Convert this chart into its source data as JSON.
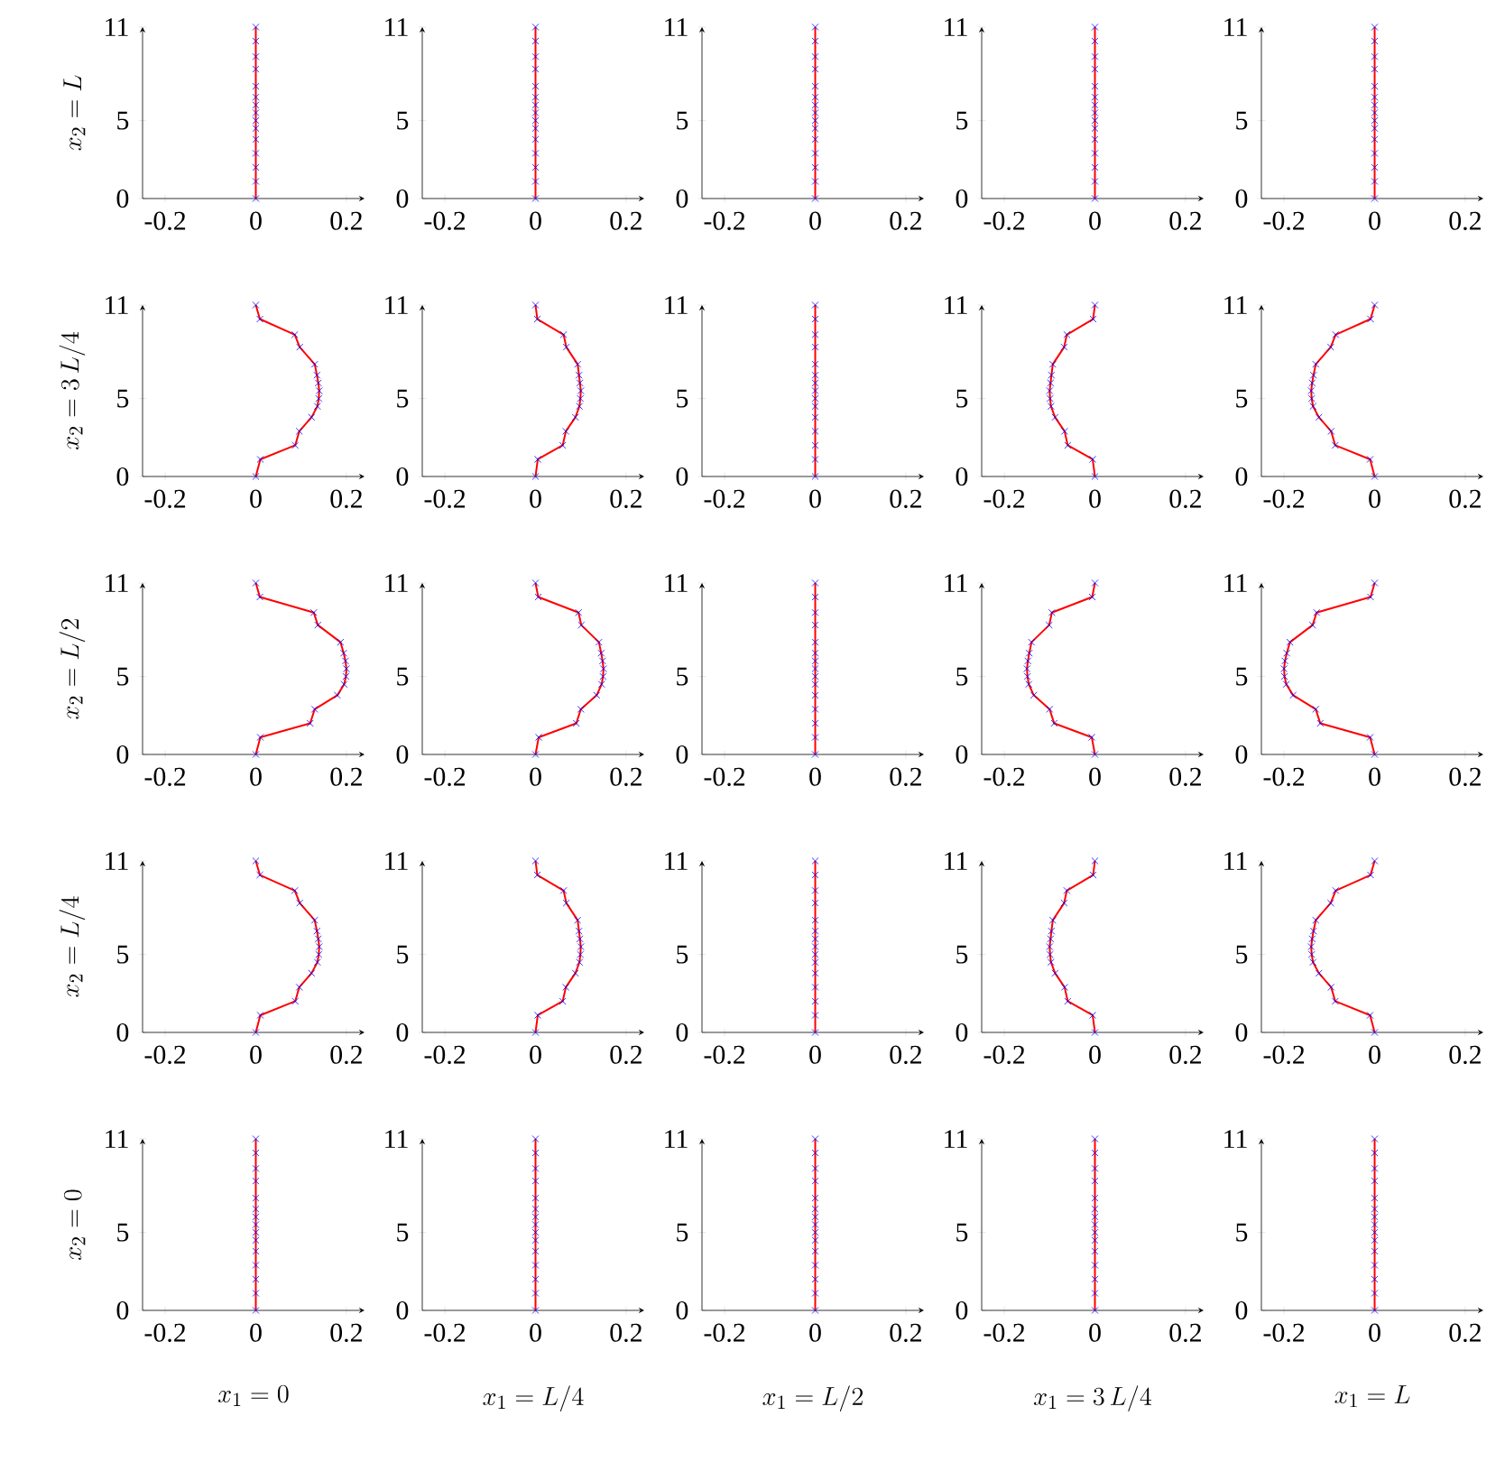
{
  "chart_data": [
    {
      "type": "line",
      "ylabel": "x_2 = L",
      "x": [
        0,
        0,
        0,
        0,
        0,
        0,
        0,
        0,
        0,
        0,
        0,
        0,
        0,
        0,
        0
      ],
      "xlim": [
        -0.25,
        0.24
      ],
      "ylim": [
        0,
        11
      ],
      "xticks": [
        -0.2,
        0,
        0.2
      ],
      "yticks": [
        0,
        5,
        11
      ],
      "series": [
        {
          "color": "#ff0000",
          "marker": "none",
          "values": [
            0,
            1.1,
            2,
            2.9,
            3.8,
            4.5,
            5,
            5.5,
            6,
            6.5,
            7.2,
            8.3,
            9.1,
            10.1,
            11
          ]
        },
        {
          "type": "scatter",
          "color": "#0000ff",
          "marker": "cross",
          "values": [
            0,
            1.1,
            2,
            2.9,
            3.8,
            4.5,
            5,
            5.5,
            6,
            6.5,
            7.2,
            8.3,
            9.1,
            10.1,
            11
          ]
        }
      ]
    },
    {
      "type": "line",
      "x": [
        0,
        0,
        0,
        0,
        0,
        0,
        0,
        0,
        0,
        0,
        0,
        0,
        0,
        0,
        0
      ],
      "xlim": [
        -0.25,
        0.24
      ],
      "ylim": [
        0,
        11
      ],
      "xticks": [
        -0.2,
        0,
        0.2
      ],
      "yticks": [
        0,
        5,
        11
      ],
      "series": [
        {
          "color": "#ff0000",
          "marker": "none",
          "values": [
            0,
            1.1,
            2,
            2.9,
            3.8,
            4.5,
            5,
            5.5,
            6,
            6.5,
            7.2,
            8.3,
            9.1,
            10.1,
            11
          ]
        },
        {
          "type": "scatter",
          "color": "#0000ff",
          "marker": "cross",
          "values": [
            0,
            1.1,
            2,
            2.9,
            3.8,
            4.5,
            5,
            5.5,
            6,
            6.5,
            7.2,
            8.3,
            9.1,
            10.1,
            11
          ]
        }
      ]
    },
    {
      "type": "line",
      "x": [
        0,
        0,
        0,
        0,
        0,
        0,
        0,
        0,
        0,
        0,
        0,
        0,
        0,
        0,
        0
      ],
      "xlim": [
        -0.25,
        0.24
      ],
      "ylim": [
        0,
        11
      ],
      "xticks": [
        -0.2,
        0,
        0.2
      ],
      "yticks": [
        0,
        5,
        11
      ],
      "series": [
        {
          "color": "#ff0000",
          "marker": "none",
          "values": [
            0,
            1.1,
            2,
            2.9,
            3.8,
            4.5,
            5,
            5.5,
            6,
            6.5,
            7.2,
            8.3,
            9.1,
            10.1,
            11
          ]
        },
        {
          "type": "scatter",
          "color": "#0000ff",
          "marker": "cross",
          "values": [
            0,
            1.1,
            2,
            2.9,
            3.8,
            4.5,
            5,
            5.5,
            6,
            6.5,
            7.2,
            8.3,
            9.1,
            10.1,
            11
          ]
        }
      ]
    },
    {
      "type": "line",
      "x": [
        0,
        0,
        0,
        0,
        0,
        0,
        0,
        0,
        0,
        0,
        0,
        0,
        0,
        0,
        0
      ],
      "xlim": [
        -0.25,
        0.24
      ],
      "ylim": [
        0,
        11
      ],
      "xticks": [
        -0.2,
        0,
        0.2
      ],
      "yticks": [
        0,
        5,
        11
      ],
      "series": [
        {
          "color": "#ff0000",
          "marker": "none",
          "values": [
            0,
            1.1,
            2,
            2.9,
            3.8,
            4.5,
            5,
            5.5,
            6,
            6.5,
            7.2,
            8.3,
            9.1,
            10.1,
            11
          ]
        },
        {
          "type": "scatter",
          "color": "#0000ff",
          "marker": "cross",
          "values": [
            0,
            1.1,
            2,
            2.9,
            3.8,
            4.5,
            5,
            5.5,
            6,
            6.5,
            7.2,
            8.3,
            9.1,
            10.1,
            11
          ]
        }
      ]
    },
    {
      "type": "line",
      "x": [
        0,
        0,
        0,
        0,
        0,
        0,
        0,
        0,
        0,
        0,
        0,
        0,
        0,
        0,
        0
      ],
      "xlim": [
        -0.25,
        0.24
      ],
      "ylim": [
        0,
        11
      ],
      "xticks": [
        -0.2,
        0,
        0.2
      ],
      "yticks": [
        0,
        5,
        11
      ],
      "series": [
        {
          "color": "#ff0000",
          "marker": "none",
          "values": [
            0,
            1.1,
            2,
            2.9,
            3.8,
            4.5,
            5,
            5.5,
            6,
            6.5,
            7.2,
            8.3,
            9.1,
            10.1,
            11
          ]
        },
        {
          "type": "scatter",
          "color": "#0000ff",
          "marker": "cross",
          "values": [
            0,
            1.1,
            2,
            2.9,
            3.8,
            4.5,
            5,
            5.5,
            6,
            6.5,
            7.2,
            8.3,
            9.1,
            10.1,
            11
          ]
        }
      ]
    },
    {
      "type": "line",
      "ylabel": "x_2 = 3\\,L/4",
      "x": [
        0,
        0.01,
        0.087,
        0.096,
        0.123,
        0.136,
        0.139,
        0.14,
        0.138,
        0.135,
        0.13,
        0.097,
        0.086,
        0.009,
        0
      ],
      "xlim": [
        -0.25,
        0.24
      ],
      "ylim": [
        0,
        11
      ],
      "xticks": [
        -0.2,
        0,
        0.2
      ],
      "yticks": [
        0,
        5,
        11
      ],
      "series": [
        {
          "color": "#ff0000",
          "marker": "none",
          "values": [
            0,
            1.1,
            2,
            2.9,
            3.8,
            4.5,
            5,
            5.5,
            6,
            6.5,
            7.2,
            8.3,
            9.1,
            10.1,
            11
          ]
        },
        {
          "type": "scatter",
          "color": "#0000ff",
          "marker": "cross",
          "values": [
            0,
            1.1,
            2,
            2.9,
            3.8,
            4.5,
            5,
            5.5,
            6,
            6.5,
            7.2,
            8.3,
            9.1,
            10.1,
            11
          ]
        }
      ]
    },
    {
      "type": "line",
      "x": [
        0,
        0.005,
        0.06,
        0.067,
        0.088,
        0.097,
        0.099,
        0.1,
        0.098,
        0.096,
        0.093,
        0.068,
        0.062,
        0.004,
        0
      ],
      "xlim": [
        -0.25,
        0.24
      ],
      "ylim": [
        0,
        11
      ],
      "xticks": [
        -0.2,
        0,
        0.2
      ],
      "yticks": [
        0,
        5,
        11
      ],
      "series": [
        {
          "color": "#ff0000",
          "marker": "none",
          "values": [
            0,
            1.1,
            2,
            2.9,
            3.8,
            4.5,
            5,
            5.5,
            6,
            6.5,
            7.2,
            8.3,
            9.1,
            10.1,
            11
          ]
        },
        {
          "type": "scatter",
          "color": "#0000ff",
          "marker": "cross",
          "values": [
            0,
            1.1,
            2,
            2.9,
            3.8,
            4.5,
            5,
            5.5,
            6,
            6.5,
            7.2,
            8.3,
            9.1,
            10.1,
            11
          ]
        }
      ]
    },
    {
      "type": "line",
      "x": [
        0,
        0,
        0,
        0,
        0,
        0,
        0,
        0,
        0,
        0,
        0,
        0,
        0,
        0,
        0
      ],
      "xlim": [
        -0.25,
        0.24
      ],
      "ylim": [
        0,
        11
      ],
      "xticks": [
        -0.2,
        0,
        0.2
      ],
      "yticks": [
        0,
        5,
        11
      ],
      "series": [
        {
          "color": "#ff0000",
          "marker": "none",
          "values": [
            0,
            1.1,
            2,
            2.9,
            3.8,
            4.5,
            5,
            5.5,
            6,
            6.5,
            7.2,
            8.3,
            9.1,
            10.1,
            11
          ]
        },
        {
          "type": "scatter",
          "color": "#0000ff",
          "marker": "cross",
          "values": [
            0,
            1.1,
            2,
            2.9,
            3.8,
            4.5,
            5,
            5.5,
            6,
            6.5,
            7.2,
            8.3,
            9.1,
            10.1,
            11
          ]
        }
      ]
    },
    {
      "type": "line",
      "x": [
        0,
        -0.005,
        -0.06,
        -0.067,
        -0.088,
        -0.097,
        -0.099,
        -0.1,
        -0.098,
        -0.096,
        -0.093,
        -0.068,
        -0.062,
        -0.004,
        0
      ],
      "xlim": [
        -0.25,
        0.24
      ],
      "ylim": [
        0,
        11
      ],
      "xticks": [
        -0.2,
        0,
        0.2
      ],
      "yticks": [
        0,
        5,
        11
      ],
      "series": [
        {
          "color": "#ff0000",
          "marker": "none",
          "values": [
            0,
            1.1,
            2,
            2.9,
            3.8,
            4.5,
            5,
            5.5,
            6,
            6.5,
            7.2,
            8.3,
            9.1,
            10.1,
            11
          ]
        },
        {
          "type": "scatter",
          "color": "#0000ff",
          "marker": "cross",
          "values": [
            0,
            1.1,
            2,
            2.9,
            3.8,
            4.5,
            5,
            5.5,
            6,
            6.5,
            7.2,
            8.3,
            9.1,
            10.1,
            11
          ]
        }
      ]
    },
    {
      "type": "line",
      "x": [
        0,
        -0.01,
        -0.087,
        -0.096,
        -0.123,
        -0.136,
        -0.139,
        -0.14,
        -0.138,
        -0.135,
        -0.13,
        -0.097,
        -0.086,
        -0.009,
        0
      ],
      "xlim": [
        -0.25,
        0.24
      ],
      "ylim": [
        0,
        11
      ],
      "xticks": [
        -0.2,
        0,
        0.2
      ],
      "yticks": [
        0,
        5,
        11
      ],
      "series": [
        {
          "color": "#ff0000",
          "marker": "none",
          "values": [
            0,
            1.1,
            2,
            2.9,
            3.8,
            4.5,
            5,
            5.5,
            6,
            6.5,
            7.2,
            8.3,
            9.1,
            10.1,
            11
          ]
        },
        {
          "type": "scatter",
          "color": "#0000ff",
          "marker": "cross",
          "values": [
            0,
            1.1,
            2,
            2.9,
            3.8,
            4.5,
            5,
            5.5,
            6,
            6.5,
            7.2,
            8.3,
            9.1,
            10.1,
            11
          ]
        }
      ]
    },
    {
      "type": "line",
      "ylabel": "x_2 = L/2",
      "x": [
        0,
        0.01,
        0.12,
        0.13,
        0.18,
        0.195,
        0.199,
        0.2,
        0.198,
        0.194,
        0.187,
        0.137,
        0.128,
        0.009,
        0
      ],
      "xlim": [
        -0.25,
        0.24
      ],
      "ylim": [
        0,
        11
      ],
      "xticks": [
        -0.2,
        0,
        0.2
      ],
      "yticks": [
        0,
        5,
        11
      ],
      "series": [
        {
          "color": "#ff0000",
          "marker": "none",
          "values": [
            0,
            1.1,
            2,
            2.9,
            3.8,
            4.5,
            5,
            5.5,
            6,
            6.5,
            7.2,
            8.3,
            9.1,
            10.1,
            11
          ]
        },
        {
          "type": "scatter",
          "color": "#0000ff",
          "marker": "cross",
          "values": [
            0,
            1.1,
            2,
            2.9,
            3.8,
            4.5,
            5,
            5.5,
            6,
            6.5,
            7.2,
            8.3,
            9.1,
            10.1,
            11
          ]
        }
      ]
    },
    {
      "type": "line",
      "x": [
        0,
        0.007,
        0.09,
        0.1,
        0.135,
        0.146,
        0.149,
        0.15,
        0.148,
        0.145,
        0.14,
        0.101,
        0.095,
        0.006,
        0
      ],
      "xlim": [
        -0.25,
        0.24
      ],
      "ylim": [
        0,
        11
      ],
      "xticks": [
        -0.2,
        0,
        0.2
      ],
      "yticks": [
        0,
        5,
        11
      ],
      "series": [
        {
          "color": "#ff0000",
          "marker": "none",
          "values": [
            0,
            1.1,
            2,
            2.9,
            3.8,
            4.5,
            5,
            5.5,
            6,
            6.5,
            7.2,
            8.3,
            9.1,
            10.1,
            11
          ]
        },
        {
          "type": "scatter",
          "color": "#0000ff",
          "marker": "cross",
          "values": [
            0,
            1.1,
            2,
            2.9,
            3.8,
            4.5,
            5,
            5.5,
            6,
            6.5,
            7.2,
            8.3,
            9.1,
            10.1,
            11
          ]
        }
      ]
    },
    {
      "type": "line",
      "x": [
        0,
        0,
        0,
        0,
        0,
        0,
        0,
        0,
        0,
        0,
        0,
        0,
        0,
        0,
        0
      ],
      "xlim": [
        -0.25,
        0.24
      ],
      "ylim": [
        0,
        11
      ],
      "xticks": [
        -0.2,
        0,
        0.2
      ],
      "yticks": [
        0,
        5,
        11
      ],
      "series": [
        {
          "color": "#ff0000",
          "marker": "none",
          "values": [
            0,
            1.1,
            2,
            2.9,
            3.8,
            4.5,
            5,
            5.5,
            6,
            6.5,
            7.2,
            8.3,
            9.1,
            10.1,
            11
          ]
        },
        {
          "type": "scatter",
          "color": "#0000ff",
          "marker": "cross",
          "values": [
            0,
            1.1,
            2,
            2.9,
            3.8,
            4.5,
            5,
            5.5,
            6,
            6.5,
            7.2,
            8.3,
            9.1,
            10.1,
            11
          ]
        }
      ]
    },
    {
      "type": "line",
      "x": [
        0,
        -0.007,
        -0.09,
        -0.1,
        -0.135,
        -0.146,
        -0.149,
        -0.15,
        -0.148,
        -0.145,
        -0.14,
        -0.101,
        -0.095,
        -0.006,
        0
      ],
      "xlim": [
        -0.25,
        0.24
      ],
      "ylim": [
        0,
        11
      ],
      "xticks": [
        -0.2,
        0,
        0.2
      ],
      "yticks": [
        0,
        5,
        11
      ],
      "series": [
        {
          "color": "#ff0000",
          "marker": "none",
          "values": [
            0,
            1.1,
            2,
            2.9,
            3.8,
            4.5,
            5,
            5.5,
            6,
            6.5,
            7.2,
            8.3,
            9.1,
            10.1,
            11
          ]
        },
        {
          "type": "scatter",
          "color": "#0000ff",
          "marker": "cross",
          "values": [
            0,
            1.1,
            2,
            2.9,
            3.8,
            4.5,
            5,
            5.5,
            6,
            6.5,
            7.2,
            8.3,
            9.1,
            10.1,
            11
          ]
        }
      ]
    },
    {
      "type": "line",
      "x": [
        0,
        -0.01,
        -0.12,
        -0.13,
        -0.18,
        -0.195,
        -0.199,
        -0.2,
        -0.198,
        -0.194,
        -0.187,
        -0.137,
        -0.128,
        -0.009,
        0
      ],
      "xlim": [
        -0.25,
        0.24
      ],
      "ylim": [
        0,
        11
      ],
      "xticks": [
        -0.2,
        0,
        0.2
      ],
      "yticks": [
        0,
        5,
        11
      ],
      "series": [
        {
          "color": "#ff0000",
          "marker": "none",
          "values": [
            0,
            1.1,
            2,
            2.9,
            3.8,
            4.5,
            5,
            5.5,
            6,
            6.5,
            7.2,
            8.3,
            9.1,
            10.1,
            11
          ]
        },
        {
          "type": "scatter",
          "color": "#0000ff",
          "marker": "cross",
          "values": [
            0,
            1.1,
            2,
            2.9,
            3.8,
            4.5,
            5,
            5.5,
            6,
            6.5,
            7.2,
            8.3,
            9.1,
            10.1,
            11
          ]
        }
      ]
    },
    {
      "type": "line",
      "ylabel": "x_2 = L/4",
      "x": [
        0,
        0.01,
        0.087,
        0.096,
        0.123,
        0.136,
        0.139,
        0.14,
        0.138,
        0.135,
        0.13,
        0.097,
        0.086,
        0.009,
        0
      ],
      "xlim": [
        -0.25,
        0.24
      ],
      "ylim": [
        0,
        11
      ],
      "xticks": [
        -0.2,
        0,
        0.2
      ],
      "yticks": [
        0,
        5,
        11
      ],
      "series": [
        {
          "color": "#ff0000",
          "marker": "none",
          "values": [
            0,
            1.1,
            2,
            2.9,
            3.8,
            4.5,
            5,
            5.5,
            6,
            6.5,
            7.2,
            8.3,
            9.1,
            10.1,
            11
          ]
        },
        {
          "type": "scatter",
          "color": "#0000ff",
          "marker": "cross",
          "values": [
            0,
            1.1,
            2,
            2.9,
            3.8,
            4.5,
            5,
            5.5,
            6,
            6.5,
            7.2,
            8.3,
            9.1,
            10.1,
            11
          ]
        }
      ]
    },
    {
      "type": "line",
      "x": [
        0,
        0.005,
        0.06,
        0.067,
        0.088,
        0.097,
        0.099,
        0.1,
        0.098,
        0.096,
        0.093,
        0.068,
        0.062,
        0.004,
        0
      ],
      "xlim": [
        -0.25,
        0.24
      ],
      "ylim": [
        0,
        11
      ],
      "xticks": [
        -0.2,
        0,
        0.2
      ],
      "yticks": [
        0,
        5,
        11
      ],
      "series": [
        {
          "color": "#ff0000",
          "marker": "none",
          "values": [
            0,
            1.1,
            2,
            2.9,
            3.8,
            4.5,
            5,
            5.5,
            6,
            6.5,
            7.2,
            8.3,
            9.1,
            10.1,
            11
          ]
        },
        {
          "type": "scatter",
          "color": "#0000ff",
          "marker": "cross",
          "values": [
            0,
            1.1,
            2,
            2.9,
            3.8,
            4.5,
            5,
            5.5,
            6,
            6.5,
            7.2,
            8.3,
            9.1,
            10.1,
            11
          ]
        }
      ]
    },
    {
      "type": "line",
      "x": [
        0,
        0,
        0,
        0,
        0,
        0,
        0,
        0,
        0,
        0,
        0,
        0,
        0,
        0,
        0
      ],
      "xlim": [
        -0.25,
        0.24
      ],
      "ylim": [
        0,
        11
      ],
      "xticks": [
        -0.2,
        0,
        0.2
      ],
      "yticks": [
        0,
        5,
        11
      ],
      "series": [
        {
          "color": "#ff0000",
          "marker": "none",
          "values": [
            0,
            1.1,
            2,
            2.9,
            3.8,
            4.5,
            5,
            5.5,
            6,
            6.5,
            7.2,
            8.3,
            9.1,
            10.1,
            11
          ]
        },
        {
          "type": "scatter",
          "color": "#0000ff",
          "marker": "cross",
          "values": [
            0,
            1.1,
            2,
            2.9,
            3.8,
            4.5,
            5,
            5.5,
            6,
            6.5,
            7.2,
            8.3,
            9.1,
            10.1,
            11
          ]
        }
      ]
    },
    {
      "type": "line",
      "x": [
        0,
        -0.005,
        -0.06,
        -0.067,
        -0.088,
        -0.097,
        -0.099,
        -0.1,
        -0.098,
        -0.096,
        -0.093,
        -0.068,
        -0.062,
        -0.004,
        0
      ],
      "xlim": [
        -0.25,
        0.24
      ],
      "ylim": [
        0,
        11
      ],
      "xticks": [
        -0.2,
        0,
        0.2
      ],
      "yticks": [
        0,
        5,
        11
      ],
      "series": [
        {
          "color": "#ff0000",
          "marker": "none",
          "values": [
            0,
            1.1,
            2,
            2.9,
            3.8,
            4.5,
            5,
            5.5,
            6,
            6.5,
            7.2,
            8.3,
            9.1,
            10.1,
            11
          ]
        },
        {
          "type": "scatter",
          "color": "#0000ff",
          "marker": "cross",
          "values": [
            0,
            1.1,
            2,
            2.9,
            3.8,
            4.5,
            5,
            5.5,
            6,
            6.5,
            7.2,
            8.3,
            9.1,
            10.1,
            11
          ]
        }
      ]
    },
    {
      "type": "line",
      "x": [
        0,
        -0.01,
        -0.087,
        -0.096,
        -0.123,
        -0.136,
        -0.139,
        -0.14,
        -0.138,
        -0.135,
        -0.13,
        -0.097,
        -0.086,
        -0.009,
        0
      ],
      "xlim": [
        -0.25,
        0.24
      ],
      "ylim": [
        0,
        11
      ],
      "xticks": [
        -0.2,
        0,
        0.2
      ],
      "yticks": [
        0,
        5,
        11
      ],
      "series": [
        {
          "color": "#ff0000",
          "marker": "none",
          "values": [
            0,
            1.1,
            2,
            2.9,
            3.8,
            4.5,
            5,
            5.5,
            6,
            6.5,
            7.2,
            8.3,
            9.1,
            10.1,
            11
          ]
        },
        {
          "type": "scatter",
          "color": "#0000ff",
          "marker": "cross",
          "values": [
            0,
            1.1,
            2,
            2.9,
            3.8,
            4.5,
            5,
            5.5,
            6,
            6.5,
            7.2,
            8.3,
            9.1,
            10.1,
            11
          ]
        }
      ]
    },
    {
      "type": "line",
      "ylabel": "x_2 = 0",
      "xlabel": "x_1 = 0",
      "x": [
        0,
        0,
        0,
        0,
        0,
        0,
        0,
        0,
        0,
        0,
        0,
        0,
        0,
        0,
        0
      ],
      "xlim": [
        -0.25,
        0.24
      ],
      "ylim": [
        0,
        11
      ],
      "xticks": [
        -0.2,
        0,
        0.2
      ],
      "yticks": [
        0,
        5,
        11
      ],
      "series": [
        {
          "color": "#ff0000",
          "marker": "none",
          "values": [
            0,
            1.1,
            2,
            2.9,
            3.8,
            4.5,
            5,
            5.5,
            6,
            6.5,
            7.2,
            8.3,
            9.1,
            10.1,
            11
          ]
        },
        {
          "type": "scatter",
          "color": "#0000ff",
          "marker": "cross",
          "values": [
            0,
            1.1,
            2,
            2.9,
            3.8,
            4.5,
            5,
            5.5,
            6,
            6.5,
            7.2,
            8.3,
            9.1,
            10.1,
            11
          ]
        }
      ]
    },
    {
      "type": "line",
      "xlabel": "x_1 = L/4",
      "x": [
        0,
        0,
        0,
        0,
        0,
        0,
        0,
        0,
        0,
        0,
        0,
        0,
        0,
        0,
        0
      ],
      "xlim": [
        -0.25,
        0.24
      ],
      "ylim": [
        0,
        11
      ],
      "xticks": [
        -0.2,
        0,
        0.2
      ],
      "yticks": [
        0,
        5,
        11
      ],
      "series": [
        {
          "color": "#ff0000",
          "marker": "none",
          "values": [
            0,
            1.1,
            2,
            2.9,
            3.8,
            4.5,
            5,
            5.5,
            6,
            6.5,
            7.2,
            8.3,
            9.1,
            10.1,
            11
          ]
        },
        {
          "type": "scatter",
          "color": "#0000ff",
          "marker": "cross",
          "values": [
            0,
            1.1,
            2,
            2.9,
            3.8,
            4.5,
            5,
            5.5,
            6,
            6.5,
            7.2,
            8.3,
            9.1,
            10.1,
            11
          ]
        }
      ]
    },
    {
      "type": "line",
      "xlabel": "x_1 = L/2",
      "x": [
        0,
        0,
        0,
        0,
        0,
        0,
        0,
        0,
        0,
        0,
        0,
        0,
        0,
        0,
        0
      ],
      "xlim": [
        -0.25,
        0.24
      ],
      "ylim": [
        0,
        11
      ],
      "xticks": [
        -0.2,
        0,
        0.2
      ],
      "yticks": [
        0,
        5,
        11
      ],
      "series": [
        {
          "color": "#ff0000",
          "marker": "none",
          "values": [
            0,
            1.1,
            2,
            2.9,
            3.8,
            4.5,
            5,
            5.5,
            6,
            6.5,
            7.2,
            8.3,
            9.1,
            10.1,
            11
          ]
        },
        {
          "type": "scatter",
          "color": "#0000ff",
          "marker": "cross",
          "values": [
            0,
            1.1,
            2,
            2.9,
            3.8,
            4.5,
            5,
            5.5,
            6,
            6.5,
            7.2,
            8.3,
            9.1,
            10.1,
            11
          ]
        }
      ]
    },
    {
      "type": "line",
      "xlabel": "x_1 = 3\\,L/4",
      "x": [
        0,
        0,
        0,
        0,
        0,
        0,
        0,
        0,
        0,
        0,
        0,
        0,
        0,
        0,
        0
      ],
      "xlim": [
        -0.25,
        0.24
      ],
      "ylim": [
        0,
        11
      ],
      "xticks": [
        -0.2,
        0,
        0.2
      ],
      "yticks": [
        0,
        5,
        11
      ],
      "series": [
        {
          "color": "#ff0000",
          "marker": "none",
          "values": [
            0,
            1.1,
            2,
            2.9,
            3.8,
            4.5,
            5,
            5.5,
            6,
            6.5,
            7.2,
            8.3,
            9.1,
            10.1,
            11
          ]
        },
        {
          "type": "scatter",
          "color": "#0000ff",
          "marker": "cross",
          "values": [
            0,
            1.1,
            2,
            2.9,
            3.8,
            4.5,
            5,
            5.5,
            6,
            6.5,
            7.2,
            8.3,
            9.1,
            10.1,
            11
          ]
        }
      ]
    },
    {
      "type": "line",
      "xlabel": "x_1 = L",
      "x": [
        0,
        0,
        0,
        0,
        0,
        0,
        0,
        0,
        0,
        0,
        0,
        0,
        0,
        0,
        0
      ],
      "xlim": [
        -0.25,
        0.24
      ],
      "ylim": [
        0,
        11
      ],
      "xticks": [
        -0.2,
        0,
        0.2
      ],
      "yticks": [
        0,
        5,
        11
      ],
      "series": [
        {
          "color": "#ff0000",
          "marker": "none",
          "values": [
            0,
            1.1,
            2,
            2.9,
            3.8,
            4.5,
            5,
            5.5,
            6,
            6.5,
            7.2,
            8.3,
            9.1,
            10.1,
            11
          ]
        },
        {
          "type": "scatter",
          "color": "#0000ff",
          "marker": "cross",
          "values": [
            0,
            1.1,
            2,
            2.9,
            3.8,
            4.5,
            5,
            5.5,
            6,
            6.5,
            7.2,
            8.3,
            9.1,
            10.1,
            11
          ]
        }
      ]
    }
  ]
}
